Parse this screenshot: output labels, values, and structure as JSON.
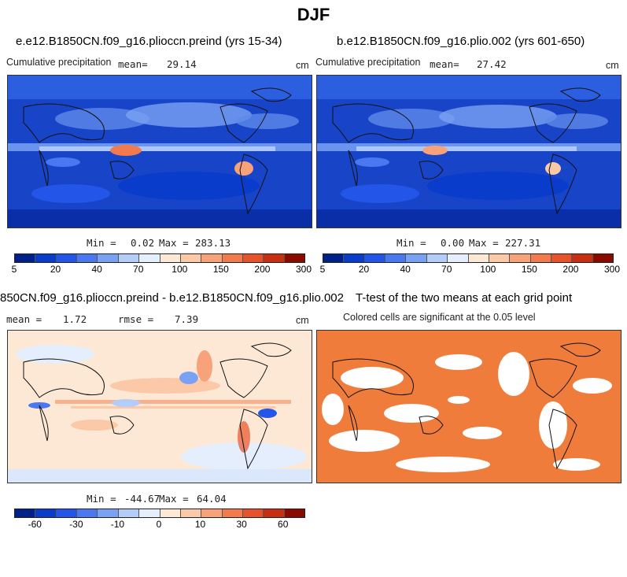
{
  "season": "DJF",
  "panel_a": {
    "title": "e.e12.B1850CN.f09_g16.plioccn.preind (yrs 15-34)",
    "variable": "Cumulative precipitation",
    "mean_label": "mean=",
    "mean_value": "29.14",
    "units": "cm",
    "min_label": "Min =",
    "min_value": "0.02",
    "max_label": "Max =",
    "max_value": "283.13"
  },
  "panel_b": {
    "title": "b.e12.B1850CN.f09_g16.plio.002 (yrs 601-650)",
    "variable": "Cumulative precipitation",
    "mean_label": "mean=",
    "mean_value": "27.42",
    "units": "cm",
    "min_label": "Min =",
    "min_value": "0.00",
    "max_label": "Max =",
    "max_value": "227.31"
  },
  "panel_c": {
    "title": "850CN.f09_g16.plioccn.preind - b.e12.B1850CN.f09_g16.plio.002",
    "mean_label": "mean =",
    "mean_value": "1.72",
    "rmse_label": "rmse =",
    "rmse_value": "7.39",
    "units": "cm",
    "min_label": "Min =",
    "min_value": "-44.67",
    "max_label": "Max =",
    "max_value": "64.04"
  },
  "panel_d": {
    "title": "T-test of the two means at each grid point",
    "subtitle": "Colored cells are significant at the 0.05 level",
    "significant_color": "#f07c3c"
  },
  "colorbar_precip": {
    "colors": [
      "#00218a",
      "#0a3ccc",
      "#2356e8",
      "#4a78f0",
      "#7aa2f4",
      "#b4cdf8",
      "#e4eefc",
      "#fde8d6",
      "#fbc8a8",
      "#f8a27a",
      "#f27a4c",
      "#e8522a",
      "#c82e10",
      "#8a0a00"
    ],
    "tick_labels": [
      "5",
      "20",
      "40",
      "70",
      "100",
      "150",
      "200",
      "300"
    ]
  },
  "colorbar_diff": {
    "colors": [
      "#00218a",
      "#0a3ccc",
      "#2356e8",
      "#4a78f0",
      "#7aa2f4",
      "#b4cdf8",
      "#e4eefc",
      "#fde8d6",
      "#fbc8a8",
      "#f8a27a",
      "#f27a4c",
      "#e8522a",
      "#c82e10",
      "#8a0a00"
    ],
    "tick_labels": [
      "-60",
      "-30",
      "-10",
      "0",
      "10",
      "30",
      "60"
    ]
  }
}
